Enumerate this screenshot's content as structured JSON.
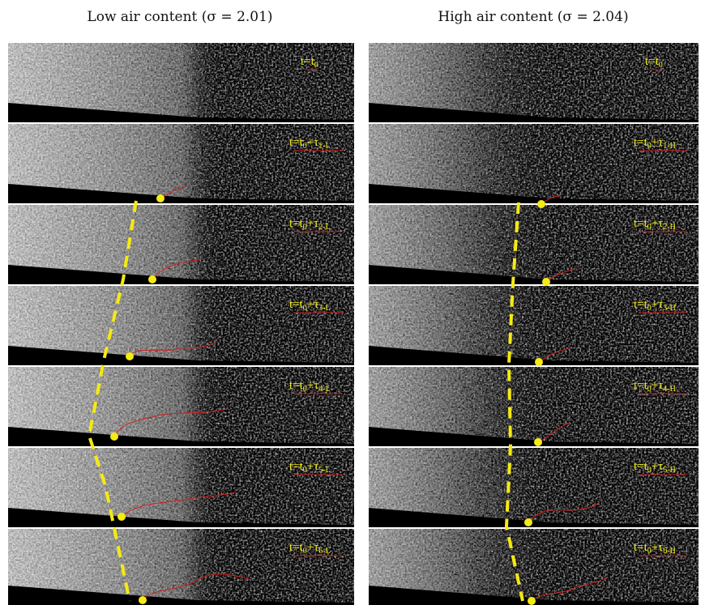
{
  "panels": [
    {
      "title": "Low air content (σ = 2.01)",
      "frames": [
        {
          "label": [
            "t=t",
            "0"
          ]
        },
        {
          "label": [
            "t=t",
            "0",
            "+τ",
            "1-L"
          ]
        },
        {
          "label": [
            "t=t",
            "0",
            "+τ",
            "2-L"
          ]
        },
        {
          "label": [
            "t=t",
            "0",
            "+τ",
            "3-L"
          ]
        },
        {
          "label": [
            "t=t",
            "0",
            "+τ",
            "4-L"
          ]
        },
        {
          "label": [
            "t=t",
            "0",
            "+τ",
            "5-L"
          ]
        },
        {
          "label": [
            "t=t",
            "0",
            "+τ",
            "6-L"
          ]
        }
      ]
    },
    {
      "title": "High air content (σ = 2.04)",
      "frames": [
        {
          "label": [
            "t=t",
            "0"
          ]
        },
        {
          "label": [
            "t=t",
            "0",
            "+τ",
            "1-H"
          ]
        },
        {
          "label": [
            "t=t",
            "0",
            "+τ",
            "2-H"
          ]
        },
        {
          "label": [
            "t=t",
            "0",
            "+τ",
            "3-H"
          ]
        },
        {
          "label": [
            "t=t",
            "0",
            "+τ",
            "4-H"
          ]
        },
        {
          "label": [
            "t=t",
            "0",
            "+τ",
            "5-H"
          ]
        },
        {
          "label": [
            "t=t",
            "0",
            "+τ",
            "6-H"
          ]
        }
      ]
    }
  ]
}
